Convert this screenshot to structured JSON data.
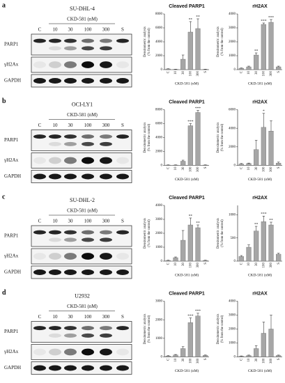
{
  "panels": [
    {
      "letter": "a",
      "cell_line": "SU-DHL-4",
      "treatment": "CKD-581 (nM)",
      "lanes": [
        "C",
        "10",
        "30",
        "100",
        "300",
        "S"
      ],
      "blots": [
        "PARP1",
        "γH2Ax",
        "GAPDH"
      ]
    },
    {
      "letter": "b",
      "cell_line": "OCI-LY1",
      "treatment": "CKD-581 (nM)",
      "lanes": [
        "C",
        "10",
        "30",
        "100",
        "300",
        "S"
      ],
      "blots": [
        "PARP1",
        "γH2Ax",
        "GAPDH"
      ]
    },
    {
      "letter": "c",
      "cell_line": "SU-DHL-2",
      "treatment": "CKD-581 (nM)",
      "lanes": [
        "C",
        "10",
        "30",
        "100",
        "300",
        "S"
      ],
      "blots": [
        "PARP1",
        "γH2Ax",
        "GAPDH"
      ]
    },
    {
      "letter": "d",
      "cell_line": "U2932",
      "treatment": "CKD-581 (nM)",
      "lanes": [
        "C",
        "10",
        "30",
        "100",
        "300",
        "S"
      ],
      "blots": [
        "PARP1",
        "γH2Ax",
        "GAPDH"
      ]
    }
  ],
  "chart_data": [
    {
      "type": "bar",
      "title": "Cleaved PARP1",
      "ylabel": [
        "Densitometric analysis",
        "(% from the control)"
      ],
      "xlabel": "CKD-581 (nM)",
      "categories": [
        "C",
        "10",
        "30",
        "100",
        "300",
        "S"
      ],
      "values": [
        100,
        50,
        1500,
        5400,
        5900,
        50
      ],
      "errors": [
        30,
        20,
        600,
        1500,
        1400,
        20
      ],
      "significance": [
        null,
        null,
        null,
        "**",
        "**",
        null
      ],
      "ylim": [
        0,
        8000
      ],
      "yticks": [
        0,
        2000,
        4000,
        6000,
        8000
      ],
      "color": "#a6a6a6"
    },
    {
      "type": "bar",
      "title": "rH2AX",
      "ylabel": [
        "Densitometric analysis",
        "(% from the control)"
      ],
      "xlabel": "CKD-581 (nM)",
      "categories": [
        "C",
        "10",
        "30",
        "100",
        "300",
        "S"
      ],
      "values": [
        100,
        200,
        1050,
        3250,
        3400,
        200
      ],
      "errors": [
        20,
        50,
        150,
        100,
        200,
        50
      ],
      "significance": [
        null,
        null,
        "**",
        "***",
        "***",
        null
      ],
      "ylim": [
        0,
        4000
      ],
      "yticks": [
        0,
        1000,
        2000,
        3000,
        4000
      ],
      "color": "#a6a6a6"
    },
    {
      "type": "bar",
      "title": "Cleaved PARP1",
      "ylabel": [
        "Densitometric analysis",
        "(% from the control)"
      ],
      "xlabel": "CKD-581 (nM)",
      "categories": [
        "C",
        "10",
        "30",
        "100",
        "300",
        "S"
      ],
      "values": [
        50,
        50,
        600,
        5700,
        7600,
        50
      ],
      "errors": [
        20,
        20,
        150,
        300,
        300,
        20
      ],
      "significance": [
        null,
        null,
        null,
        "***",
        "***",
        null
      ],
      "ylim": [
        0,
        8000
      ],
      "yticks": [
        0,
        2000,
        4000,
        6000,
        8000
      ],
      "color": "#a6a6a6"
    },
    {
      "type": "bar",
      "title": "rH2AX",
      "ylabel": [
        "Densitometric analysis",
        "(% from the control)"
      ],
      "xlabel": "CKD-581 (nM)",
      "categories": [
        "C",
        "10",
        "30",
        "100",
        "300",
        "S"
      ],
      "values": [
        150,
        200,
        1700,
        4100,
        3700,
        250
      ],
      "errors": [
        50,
        50,
        1000,
        1500,
        1100,
        100
      ],
      "significance": [
        null,
        null,
        null,
        "*",
        null,
        null
      ],
      "ylim": [
        0,
        6000
      ],
      "yticks": [
        0,
        2000,
        4000,
        6000
      ],
      "color": "#a6a6a6"
    },
    {
      "type": "bar",
      "title": "Cleaved PARP1",
      "ylabel": [
        "Densitometric analysis",
        "(% from the control)"
      ],
      "xlabel": "CKD-581 (nM)",
      "categories": [
        "C",
        "10",
        "30",
        "100",
        "300",
        "S"
      ],
      "values": [
        50,
        250,
        1500,
        2600,
        2400,
        50
      ],
      "errors": [
        20,
        50,
        700,
        500,
        200,
        20
      ],
      "significance": [
        null,
        null,
        null,
        "**",
        "**",
        null
      ],
      "ylim": [
        0,
        4000
      ],
      "yticks": [
        0,
        1000,
        2000,
        3000,
        4000
      ],
      "color": "#a6a6a6"
    },
    {
      "type": "bar",
      "title": "rH2AX",
      "ylabel": [
        "Densitometric analysis",
        "(% from the control)"
      ],
      "xlabel": "CKD-581 (nM)",
      "categories": [
        "C",
        "10",
        "30",
        "100",
        "300",
        "S"
      ],
      "values": [
        100,
        300,
        650,
        850,
        780,
        150
      ],
      "errors": [
        20,
        50,
        100,
        120,
        60,
        20
      ],
      "significance": [
        null,
        null,
        "**",
        "***",
        "**",
        null
      ],
      "ylim": [
        0,
        1200
      ],
      "yticks": [
        0,
        500,
        1000
      ],
      "color": "#a6a6a6"
    },
    {
      "type": "bar",
      "title": "Cleaved PARP1",
      "ylabel": [
        "Densitometric analysis",
        "(% from the control)"
      ],
      "xlabel": "CKD-581 (nM)",
      "categories": [
        "C",
        "10",
        "30",
        "100",
        "300",
        "S"
      ],
      "values": [
        50,
        100,
        450,
        1850,
        2200,
        80
      ],
      "errors": [
        20,
        30,
        100,
        250,
        150,
        20
      ],
      "significance": [
        null,
        null,
        null,
        "***",
        "***",
        null
      ],
      "ylim": [
        0,
        3000
      ],
      "yticks": [
        0,
        1000,
        2000,
        3000
      ],
      "color": "#a6a6a6"
    },
    {
      "type": "bar",
      "title": "rH2AX",
      "ylabel": [
        "Densitometric analysis",
        "(% from the control)"
      ],
      "xlabel": "CKD-581 (nM)",
      "categories": [
        "C",
        "10",
        "30",
        "100",
        "300",
        "S"
      ],
      "values": [
        50,
        100,
        600,
        1700,
        2000,
        100
      ],
      "errors": [
        20,
        30,
        200,
        800,
        1000,
        30
      ],
      "significance": [
        null,
        null,
        null,
        null,
        null,
        null
      ],
      "ylim": [
        0,
        4000
      ],
      "yticks": [
        0,
        1000,
        2000,
        3000,
        4000
      ],
      "color": "#a6a6a6"
    }
  ]
}
